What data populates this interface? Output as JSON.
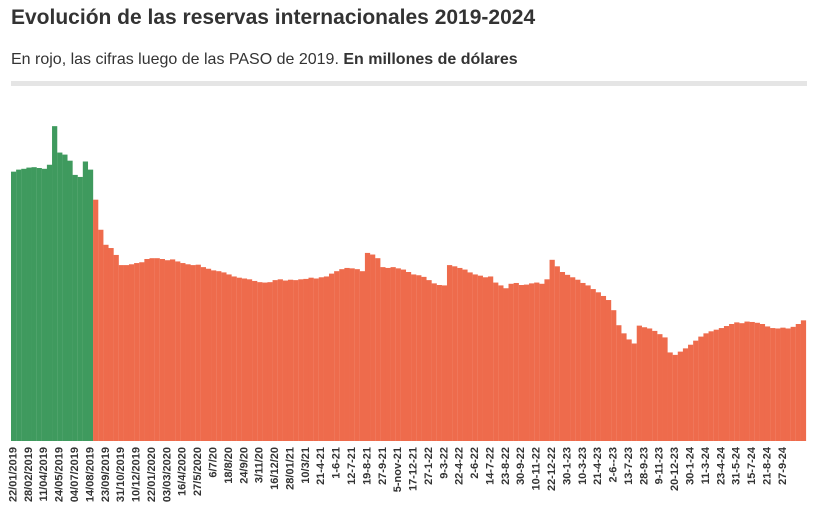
{
  "chart_data": {
    "type": "bar",
    "title": "Evolución de las reservas internacionales 2019-2024",
    "subtitle": "En rojo, las cifras luego de las PASO de 2019.",
    "subtitle_bold": "En millones de dólares",
    "ylim": [
      0,
      80000
    ],
    "categories": [
      "22/01/2019",
      null,
      null,
      "28/02/2019",
      null,
      null,
      "11/04/2019",
      null,
      null,
      "24/05/2019",
      null,
      null,
      "04/07/2019",
      null,
      null,
      "14/08/2019",
      null,
      null,
      "23/09/2019",
      null,
      null,
      "31/10/2019",
      null,
      null,
      "10/12/2019",
      null,
      null,
      "22/01/2020",
      null,
      null,
      "03/03/2020",
      null,
      null,
      "16/4/2020",
      null,
      null,
      "27/5/2020",
      null,
      null,
      "6/7/20",
      null,
      null,
      "18/8/20",
      null,
      null,
      "24/9/20",
      null,
      null,
      "3/11/20",
      null,
      null,
      "16/12/20",
      null,
      null,
      "28/01/21",
      null,
      null,
      "10/3/21",
      null,
      null,
      "21-4-21",
      null,
      null,
      "1-6-21",
      null,
      null,
      "12-7-21",
      null,
      null,
      "19-8-21",
      null,
      null,
      "27-9-21",
      null,
      null,
      "5-nov-21",
      null,
      null,
      "17-12-21",
      null,
      null,
      "27-1-22",
      null,
      null,
      "9-3-22",
      null,
      null,
      "22-4-22",
      null,
      null,
      "2-6-22",
      null,
      null,
      "14-7-22",
      null,
      null,
      "23-8-22",
      null,
      null,
      "30-9-22",
      null,
      null,
      "10-11-22",
      null,
      null,
      "22-12-22",
      null,
      null,
      "30-1-23",
      null,
      null,
      "10-3-23",
      null,
      null,
      "21-4-23",
      null,
      null,
      "2-6--23",
      null,
      null,
      "13-7-23",
      null,
      null,
      "28-9-23",
      null,
      null,
      "9-11-23",
      null,
      null,
      "20-12-23",
      null,
      null,
      "30-1-24",
      null,
      null,
      "11-3-24",
      null,
      null,
      "23-4-24",
      null,
      null,
      "31-5-24",
      null,
      null,
      "15-7-24",
      null,
      null,
      "21-8-24",
      null,
      null,
      "27-9-24",
      null,
      null,
      null,
      null
    ],
    "series": [
      {
        "color": "#3f9a5e",
        "values": [
          66300,
          66800,
          67000,
          67300,
          67400,
          67200,
          67000,
          68000,
          77500,
          71000,
          70500,
          69000,
          65500,
          65000,
          68800,
          66800,
          null,
          null,
          null,
          null,
          null,
          null,
          null,
          null,
          null,
          null,
          null,
          null,
          null,
          null,
          null,
          null,
          null,
          null,
          null,
          null,
          null,
          null,
          null,
          null,
          null,
          null,
          null,
          null,
          null,
          null,
          null,
          null,
          null,
          null,
          null,
          null,
          null,
          null,
          null,
          null,
          null,
          null,
          null,
          null,
          null,
          null,
          null,
          null,
          null,
          null,
          null,
          null,
          null,
          null,
          null,
          null,
          null,
          null,
          null,
          null,
          null,
          null,
          null,
          null,
          null,
          null,
          null,
          null,
          null,
          null,
          null,
          null,
          null,
          null,
          null,
          null,
          null,
          null,
          null,
          null,
          null,
          null,
          null,
          null,
          null,
          null,
          null,
          null,
          null,
          null,
          null,
          null,
          null,
          null,
          null,
          null,
          null,
          null,
          null,
          null,
          null,
          null,
          null,
          null,
          null,
          null,
          null,
          null,
          null,
          null,
          null,
          null,
          null,
          null,
          null,
          null,
          null,
          null,
          null,
          null,
          null,
          null,
          null,
          null,
          null,
          null,
          null,
          null,
          null,
          null,
          null,
          null,
          null,
          null,
          null,
          null,
          null,
          null,
          null
        ]
      },
      {
        "color": "#ee6b4c",
        "values": [
          null,
          null,
          null,
          null,
          null,
          null,
          null,
          null,
          null,
          null,
          null,
          null,
          null,
          null,
          null,
          null,
          59400,
          52000,
          48300,
          47500,
          45800,
          43300,
          43300,
          43500,
          43800,
          44000,
          44800,
          45000,
          45000,
          44800,
          44500,
          44700,
          44200,
          43800,
          43500,
          43300,
          43400,
          42800,
          42400,
          42000,
          41800,
          41500,
          41000,
          40500,
          40200,
          40000,
          39800,
          39400,
          39100,
          39000,
          39100,
          39600,
          39800,
          39500,
          39700,
          39600,
          39800,
          39900,
          40200,
          40000,
          40300,
          40500,
          41200,
          41800,
          42300,
          42600,
          42500,
          42300,
          41800,
          46300,
          45900,
          45000,
          42800,
          42600,
          42800,
          42500,
          42200,
          41600,
          41000,
          40800,
          40400,
          39600,
          38800,
          38400,
          38300,
          43300,
          43000,
          42600,
          42200,
          41500,
          41000,
          40700,
          40300,
          40500,
          39000,
          38300,
          37600,
          38700,
          38900,
          38400,
          38500,
          38800,
          39000,
          38700,
          39800,
          44600,
          43000,
          41600,
          40900,
          40300,
          39700,
          38900,
          38300,
          37400,
          36600,
          35700,
          34700,
          32200,
          28500,
          26500,
          25000,
          24000,
          28400,
          28000,
          27700,
          27100,
          26300,
          25500,
          21800,
          21200,
          22000,
          22800,
          23700,
          24700,
          25700,
          26500,
          27000,
          27400,
          27800,
          28300,
          28800,
          29200,
          29000,
          29400,
          29300,
          29100,
          28800,
          28200,
          27800,
          27700,
          27900,
          27700,
          28100,
          28800,
          29700
        ]
      }
    ]
  }
}
